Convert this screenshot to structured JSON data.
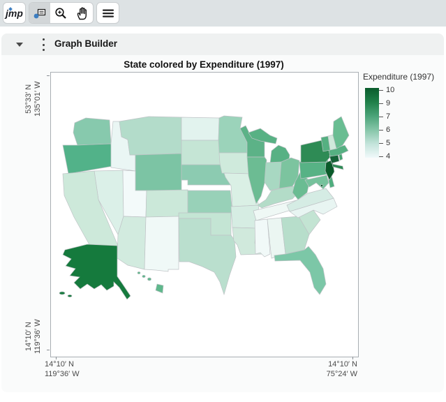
{
  "toolbar": {
    "logo": "jmp"
  },
  "report_header": {
    "title": "Graph Builder"
  },
  "graph": {
    "title": "State colored by Expenditure (1997)",
    "y_axis_top_label": "53°33′ N\n135°01′ W",
    "y_axis_bottom_label": "14°10′ N\n119°36′ W",
    "x_axis_left_label": "14°10′ N\n119°36′ W",
    "x_axis_right_label": "14°10′ N\n75°24′ W"
  },
  "legend": {
    "title": "Expenditure (1997)",
    "tick_labels": [
      "10",
      "9",
      "7",
      "6",
      "5",
      "4"
    ],
    "gradient_stops": [
      "#0a5c2c",
      "#1f7f49",
      "#4aa378",
      "#85c5a8",
      "#c3e3da",
      "#f0f9fa"
    ]
  },
  "map": {
    "states": {
      "WA": "#87c9ad",
      "OR": "#52b289",
      "CA": "#cde9da",
      "NV": "#dbf0e8",
      "ID": "#eaf6f4",
      "MT": "#b3dcca",
      "WY": "#7cc4a4",
      "UT": "#f3fafa",
      "CO": "#cbe8d9",
      "AZ": "#d2ebdf",
      "NM": "#f0f9f7",
      "ND": "#e2f3ee",
      "SD": "#c5e5d5",
      "NE": "#8ccbb1",
      "KS": "#98d1b8",
      "OK": "#c4e5d4",
      "TX": "#badfce",
      "MN": "#9bd3ba",
      "IA": "#cfeadc",
      "MO": "#daf0e5",
      "AR": "#d6ede3",
      "LA": "#d0e9dc",
      "WI": "#5cb287",
      "IL": "#6cbc93",
      "MI": "#58b184",
      "IN": "#a8d8c2",
      "OH": "#7cc49f",
      "KY": "#b3dcc8",
      "TN": "#eff8f5",
      "MS": "#f1f9f8",
      "AL": "#ebf6f2",
      "GA": "#b7decb",
      "FL": "#7cc7a7",
      "SC": "#c3e4d3",
      "NC": "#e8f5f2",
      "VA": "#d5ece4",
      "WV": "#6abc92",
      "PA": "#57b285",
      "NY": "#2e8b55",
      "NJ": "#0a5a2a",
      "CT": "#156338",
      "RI": "#45a472",
      "MA": "#56b082",
      "VT": "#55b081",
      "NH": "#cfe9db",
      "ME": "#69bd92",
      "MD": "#76c29c",
      "DE": "#4fae7e",
      "DC": "#0b5c2b",
      "AK": "#157a3d",
      "HI": "#5fb88c"
    }
  }
}
